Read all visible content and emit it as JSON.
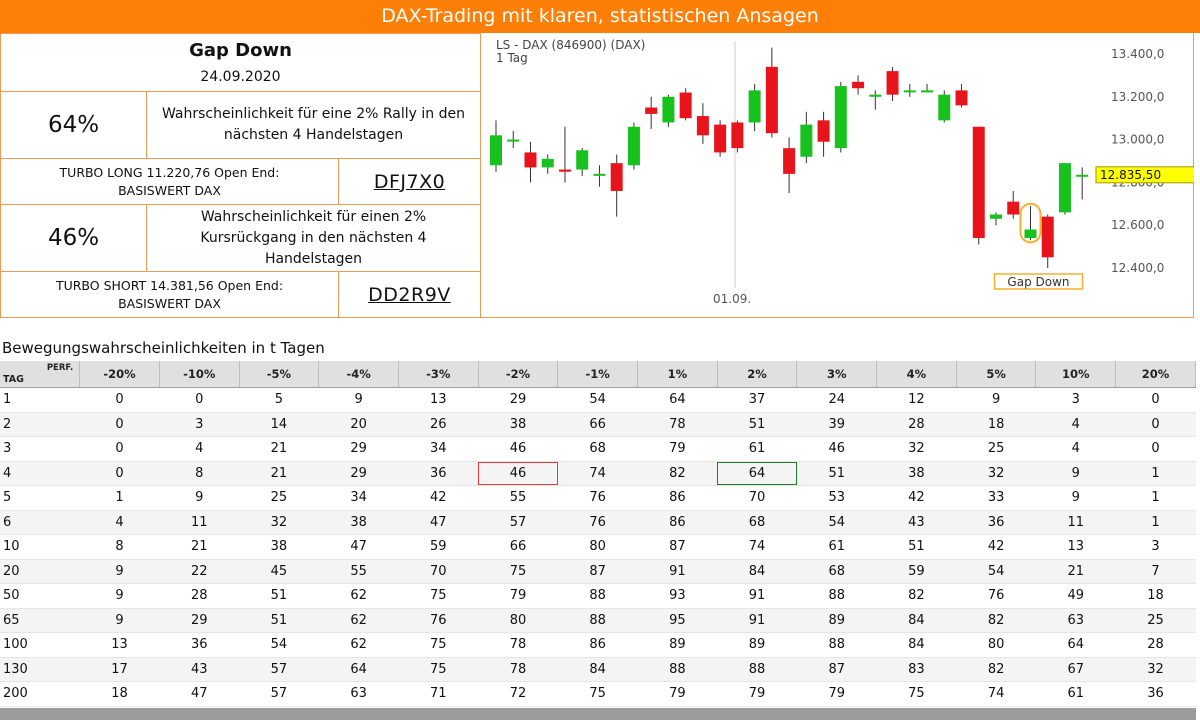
{
  "header": {
    "title": "DAX-Trading mit klaren, statistischen Ansagen"
  },
  "signal": {
    "title": "Gap Down",
    "date": "24.09.2020"
  },
  "long": {
    "probability": "64%",
    "description": "Wahrscheinlichkeit für eine 2% Rally in den nächsten 4 Handelstagen",
    "product_line1": "TURBO LONG 11.220,76 Open End:",
    "product_line2": "BASISWERT DAX",
    "code": "DFJ7X0"
  },
  "short": {
    "probability": "46%",
    "description": "Wahrscheinlichkeit für einen 2% Kursrückgang in den nächsten 4 Handelstagen",
    "product_line1": "TURBO SHORT 14.381,56 Open End:",
    "product_line2": "BASISWERT DAX",
    "code": "DD2R9V"
  },
  "chart": {
    "title_line1": "LS - DAX (846900) (DAX)",
    "title_line2": "1 Tag",
    "x_label": "01.09.",
    "y_ticks": [
      "13.400,0",
      "13.200,0",
      "13.000,0",
      "12.800,0",
      "12.600,0",
      "12.400,0"
    ],
    "last_price": "12.835,50",
    "annotation": "Gap Down",
    "colors": {
      "up": "#18c21e",
      "down": "#e8141c",
      "last_price_bg": "#ffff00",
      "annotation": "#f6b02b"
    }
  },
  "chart_data": {
    "type": "candlestick",
    "title": "LS - DAX (846900) (DAX)",
    "subtitle": "1 Tag",
    "ylim": [
      12350,
      13450
    ],
    "y_ticks": [
      13400,
      13200,
      13000,
      12800,
      12600,
      12400
    ],
    "x_label": "01.09.",
    "last_price": 12835.5,
    "candles": [
      {
        "o": 12880,
        "h": 13090,
        "l": 12850,
        "c": 13020
      },
      {
        "o": 13000,
        "h": 13040,
        "l": 12960,
        "c": 13000
      },
      {
        "o": 12940,
        "h": 12990,
        "l": 12800,
        "c": 12870
      },
      {
        "o": 12870,
        "h": 12930,
        "l": 12840,
        "c": 12910
      },
      {
        "o": 12860,
        "h": 13060,
        "l": 12800,
        "c": 12850
      },
      {
        "o": 12860,
        "h": 12960,
        "l": 12830,
        "c": 12950
      },
      {
        "o": 12840,
        "h": 12880,
        "l": 12780,
        "c": 12840
      },
      {
        "o": 12890,
        "h": 12930,
        "l": 12640,
        "c": 12760
      },
      {
        "o": 12880,
        "h": 13080,
        "l": 12860,
        "c": 13060
      },
      {
        "o": 13150,
        "h": 13200,
        "l": 13050,
        "c": 13120
      },
      {
        "o": 13080,
        "h": 13210,
        "l": 13060,
        "c": 13200
      },
      {
        "o": 13220,
        "h": 13240,
        "l": 13090,
        "c": 13100
      },
      {
        "o": 13110,
        "h": 13170,
        "l": 12980,
        "c": 13020
      },
      {
        "o": 13070,
        "h": 13090,
        "l": 12920,
        "c": 12940
      },
      {
        "o": 13080,
        "h": 13090,
        "l": 12940,
        "c": 12960
      },
      {
        "o": 13080,
        "h": 13260,
        "l": 13040,
        "c": 13230
      },
      {
        "o": 13340,
        "h": 13430,
        "l": 13010,
        "c": 13030
      },
      {
        "o": 12960,
        "h": 13010,
        "l": 12750,
        "c": 12840
      },
      {
        "o": 12920,
        "h": 13130,
        "l": 12890,
        "c": 13070
      },
      {
        "o": 13090,
        "h": 13130,
        "l": 12920,
        "c": 12990
      },
      {
        "o": 12960,
        "h": 13270,
        "l": 12940,
        "c": 13250
      },
      {
        "o": 13270,
        "h": 13300,
        "l": 13210,
        "c": 13240
      },
      {
        "o": 13200,
        "h": 13230,
        "l": 13140,
        "c": 13210
      },
      {
        "o": 13320,
        "h": 13340,
        "l": 13180,
        "c": 13210
      },
      {
        "o": 13230,
        "h": 13260,
        "l": 13200,
        "c": 13230
      },
      {
        "o": 13230,
        "h": 13260,
        "l": 13220,
        "c": 13230
      },
      {
        "o": 13090,
        "h": 13230,
        "l": 13080,
        "c": 13210
      },
      {
        "o": 13230,
        "h": 13260,
        "l": 13150,
        "c": 13160
      },
      {
        "o": 13060,
        "h": 13060,
        "l": 12510,
        "c": 12540
      },
      {
        "o": 12630,
        "h": 12660,
        "l": 12600,
        "c": 12650
      },
      {
        "o": 12710,
        "h": 12760,
        "l": 12630,
        "c": 12650
      },
      {
        "o": 12540,
        "h": 12690,
        "l": 12530,
        "c": 12580
      },
      {
        "o": 12640,
        "h": 12650,
        "l": 12400,
        "c": 12450
      },
      {
        "o": 12660,
        "h": 12890,
        "l": 12650,
        "c": 12890
      },
      {
        "o": 12830,
        "h": 12870,
        "l": 12720,
        "c": 12835.5
      }
    ]
  },
  "table": {
    "caption": "Bewegungswahrscheinlichkeiten in t Tagen",
    "corner_top": "PERF.",
    "corner_bottom": "TAG",
    "headers": [
      "-20%",
      "-10%",
      "-5%",
      "-4%",
      "-3%",
      "-2%",
      "-1%",
      "1%",
      "2%",
      "3%",
      "4%",
      "5%",
      "10%",
      "20%"
    ],
    "rows": [
      {
        "day": "1",
        "v": [
          "0",
          "0",
          "5",
          "9",
          "13",
          "29",
          "54",
          "64",
          "37",
          "24",
          "12",
          "9",
          "3",
          "0"
        ]
      },
      {
        "day": "2",
        "v": [
          "0",
          "3",
          "14",
          "20",
          "26",
          "38",
          "66",
          "78",
          "51",
          "39",
          "28",
          "18",
          "4",
          "0"
        ]
      },
      {
        "day": "3",
        "v": [
          "0",
          "4",
          "21",
          "29",
          "34",
          "46",
          "68",
          "79",
          "61",
          "46",
          "32",
          "25",
          "4",
          "0"
        ]
      },
      {
        "day": "4",
        "v": [
          "0",
          "8",
          "21",
          "29",
          "36",
          "46",
          "74",
          "82",
          "64",
          "51",
          "38",
          "32",
          "9",
          "1"
        ]
      },
      {
        "day": "5",
        "v": [
          "1",
          "9",
          "25",
          "34",
          "42",
          "55",
          "76",
          "86",
          "70",
          "53",
          "42",
          "33",
          "9",
          "1"
        ]
      },
      {
        "day": "6",
        "v": [
          "4",
          "11",
          "32",
          "38",
          "47",
          "57",
          "76",
          "86",
          "68",
          "54",
          "43",
          "36",
          "11",
          "1"
        ]
      },
      {
        "day": "10",
        "v": [
          "8",
          "21",
          "38",
          "47",
          "59",
          "66",
          "80",
          "87",
          "74",
          "61",
          "51",
          "42",
          "13",
          "3"
        ]
      },
      {
        "day": "20",
        "v": [
          "9",
          "22",
          "45",
          "55",
          "70",
          "75",
          "87",
          "91",
          "84",
          "68",
          "59",
          "54",
          "21",
          "7"
        ]
      },
      {
        "day": "50",
        "v": [
          "9",
          "28",
          "51",
          "62",
          "75",
          "79",
          "88",
          "93",
          "91",
          "88",
          "82",
          "76",
          "49",
          "18"
        ]
      },
      {
        "day": "65",
        "v": [
          "9",
          "29",
          "51",
          "62",
          "76",
          "80",
          "88",
          "95",
          "91",
          "89",
          "84",
          "82",
          "63",
          "25"
        ]
      },
      {
        "day": "100",
        "v": [
          "13",
          "36",
          "54",
          "62",
          "75",
          "78",
          "86",
          "89",
          "89",
          "88",
          "84",
          "80",
          "64",
          "28"
        ]
      },
      {
        "day": "130",
        "v": [
          "17",
          "43",
          "57",
          "64",
          "75",
          "78",
          "84",
          "88",
          "88",
          "87",
          "83",
          "82",
          "67",
          "32"
        ]
      },
      {
        "day": "200",
        "v": [
          "18",
          "47",
          "57",
          "63",
          "71",
          "72",
          "75",
          "79",
          "79",
          "79",
          "75",
          "74",
          "61",
          "36"
        ]
      }
    ],
    "highlight_short": {
      "row": 3,
      "col": 5,
      "color": "#e23b3b"
    },
    "highlight_long": {
      "row": 3,
      "col": 8,
      "color": "#1a7f2b"
    }
  }
}
